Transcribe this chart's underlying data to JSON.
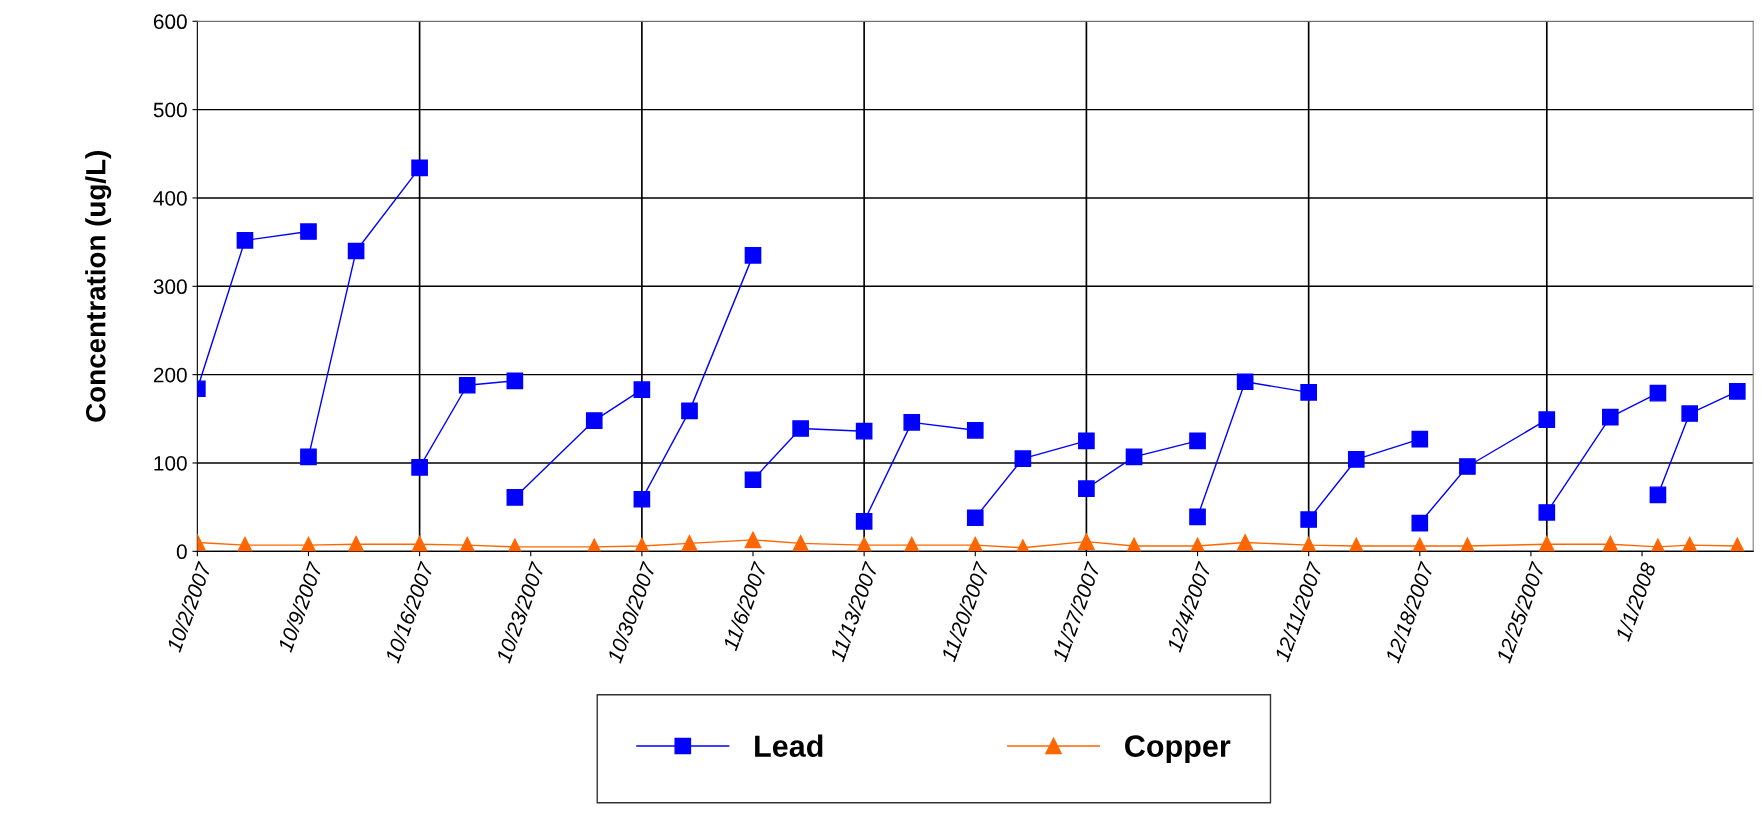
{
  "chart_data": {
    "type": "line",
    "ylabel": "Concentration (ug/L)",
    "xlim": [
      "2007-10-02",
      "2008-01-08"
    ],
    "ylim": [
      0,
      600
    ],
    "yticks": [
      0,
      100,
      200,
      300,
      400,
      500,
      600
    ],
    "xticks": [
      {
        "value": "2007-10-02",
        "label": "10/2/2007"
      },
      {
        "value": "2007-10-09",
        "label": "10/9/2007"
      },
      {
        "value": "2007-10-16",
        "label": "10/16/2007"
      },
      {
        "value": "2007-10-23",
        "label": "10/23/2007"
      },
      {
        "value": "2007-10-30",
        "label": "10/30/2007"
      },
      {
        "value": "2007-11-06",
        "label": "11/6/2007"
      },
      {
        "value": "2007-11-13",
        "label": "11/13/2007"
      },
      {
        "value": "2007-11-20",
        "label": "11/20/2007"
      },
      {
        "value": "2007-11-27",
        "label": "11/27/2007"
      },
      {
        "value": "2007-12-04",
        "label": "12/4/2007"
      },
      {
        "value": "2007-12-11",
        "label": "12/11/2007"
      },
      {
        "value": "2007-12-18",
        "label": "12/18/2007"
      },
      {
        "value": "2007-12-25",
        "label": "12/25/2007"
      },
      {
        "value": "2008-01-01",
        "label": "1/1/2008"
      }
    ],
    "grid": "y",
    "legend": "bottom",
    "series": [
      {
        "name": "Lead",
        "color": "#0000ff",
        "marker": "square",
        "x": [
          "2007-10-02",
          "2007-10-05",
          "2007-10-09",
          null,
          "2007-10-09",
          "2007-10-12",
          "2007-10-16",
          null,
          "2007-10-16",
          "2007-10-19",
          "2007-10-22",
          null,
          "2007-10-22",
          "2007-10-27",
          "2007-10-30",
          null,
          "2007-10-30",
          "2007-11-02",
          "2007-11-06",
          null,
          "2007-11-06",
          "2007-11-09",
          "2007-11-13",
          null,
          "2007-11-13",
          "2007-11-16",
          "2007-11-20",
          null,
          "2007-11-20",
          "2007-11-23",
          "2007-11-27",
          null,
          "2007-11-27",
          "2007-11-30",
          "2007-12-04",
          null,
          "2007-12-04",
          "2007-12-07",
          "2007-12-11",
          null,
          "2007-12-11",
          "2007-12-14",
          "2007-12-18",
          null,
          "2007-12-18",
          "2007-12-21",
          "2007-12-26",
          null,
          "2007-12-26",
          "2007-12-30",
          "2008-01-02",
          null,
          "2008-01-02",
          "2008-01-04",
          "2008-01-07"
        ],
        "values": [
          184,
          352,
          362,
          null,
          107,
          340,
          434,
          null,
          95,
          188,
          193,
          null,
          61,
          148,
          183,
          null,
          59,
          159,
          335,
          null,
          81,
          139,
          136,
          null,
          34,
          146,
          137,
          null,
          38,
          105,
          125,
          null,
          71,
          107,
          125,
          null,
          39,
          192,
          180,
          null,
          36,
          104,
          127,
          null,
          32,
          96,
          149,
          null,
          44,
          152,
          179,
          null,
          64,
          156,
          181
        ]
      },
      {
        "name": "Copper",
        "color": "#ff6600",
        "marker": "triangle",
        "x": [
          "2007-10-02",
          "2007-10-05",
          "2007-10-09",
          "2007-10-12",
          "2007-10-16",
          "2007-10-19",
          "2007-10-22",
          "2007-10-27",
          "2007-10-30",
          "2007-11-02",
          "2007-11-06",
          "2007-11-09",
          "2007-11-13",
          "2007-11-16",
          "2007-11-20",
          "2007-11-23",
          "2007-11-27",
          "2007-11-30",
          "2007-12-04",
          "2007-12-07",
          "2007-12-11",
          "2007-12-14",
          "2007-12-18",
          "2007-12-21",
          "2007-12-26",
          "2007-12-30",
          "2008-01-02",
          "2008-01-04",
          "2008-01-07"
        ],
        "values": [
          10,
          7,
          7,
          8,
          8,
          7,
          5,
          5,
          6,
          9,
          13,
          9,
          7,
          7,
          7,
          4,
          11,
          6,
          6,
          10,
          7,
          6,
          6,
          6,
          8,
          8,
          5,
          7,
          6
        ]
      }
    ],
    "ref_lines": [
      {
        "axis": "x",
        "value": "2007-10-16",
        "color": "#000000"
      },
      {
        "axis": "x",
        "value": "2007-10-30",
        "color": "#000000"
      },
      {
        "axis": "x",
        "value": "2007-11-13",
        "color": "#000000"
      },
      {
        "axis": "x",
        "value": "2007-11-27",
        "color": "#000000"
      },
      {
        "axis": "x",
        "value": "2007-12-11",
        "color": "#000000"
      },
      {
        "axis": "x",
        "value": "2007-12-26",
        "color": "#000000"
      }
    ]
  }
}
